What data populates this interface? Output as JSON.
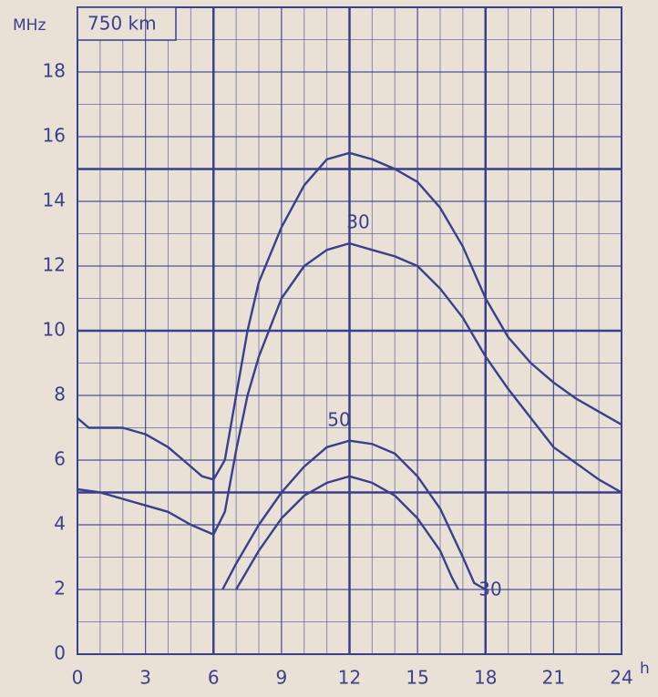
{
  "chart_data": {
    "type": "line",
    "title": "750 km",
    "y_label": "MHz",
    "x_label": "h",
    "xlim": [
      0,
      24
    ],
    "xticks": [
      0,
      3,
      6,
      9,
      12,
      15,
      18,
      21,
      24
    ],
    "ylim": [
      0,
      20
    ],
    "yticks": [
      0,
      2,
      4,
      6,
      8,
      10,
      12,
      14,
      16,
      18
    ],
    "grid": true,
    "reference_lines": {
      "x": [
        6,
        12,
        18
      ],
      "y": [
        5,
        10,
        15
      ]
    },
    "annotations": [
      "30",
      "50",
      "30"
    ],
    "series": [
      {
        "color": "#3b3f8c",
        "x": [
          0,
          0.5,
          1,
          2,
          3,
          4,
          5,
          5.5,
          6,
          6.5,
          7,
          7.5,
          8,
          9,
          10,
          11,
          12,
          13,
          14,
          15,
          16,
          17,
          18,
          19,
          20,
          21,
          22,
          23,
          24
        ],
        "values": [
          7.3,
          7.0,
          7.0,
          7.0,
          6.8,
          6.4,
          5.8,
          5.5,
          5.4,
          6.0,
          8.0,
          10.0,
          11.5,
          13.2,
          14.5,
          15.3,
          15.5,
          15.3,
          15.0,
          14.6,
          13.8,
          12.6,
          11.0,
          9.8,
          9.0,
          8.4,
          7.9,
          7.5,
          7.1
        ]
      },
      {
        "color": "#3b3f8c",
        "x": [
          0,
          1,
          2,
          3,
          4,
          5,
          6,
          6.5,
          7,
          7.5,
          8,
          9,
          10,
          11,
          12,
          13,
          14,
          15,
          16,
          17,
          18,
          19,
          20,
          21,
          22,
          23,
          24
        ],
        "values": [
          5.1,
          5.0,
          4.8,
          4.6,
          4.4,
          4.0,
          3.7,
          4.4,
          6.3,
          8.0,
          9.2,
          11.0,
          12.0,
          12.5,
          12.7,
          12.5,
          12.3,
          12.0,
          11.3,
          10.4,
          9.2,
          8.2,
          7.3,
          6.4,
          5.9,
          5.4,
          5.0
        ]
      },
      {
        "color": "#3b3f8c",
        "x": [
          6.4,
          7,
          8,
          9,
          10,
          11,
          12,
          13,
          14,
          15,
          16,
          17,
          17.5,
          18
        ],
        "values": [
          2.0,
          2.8,
          4.0,
          5.0,
          5.8,
          6.4,
          6.6,
          6.5,
          6.2,
          5.5,
          4.5,
          3.0,
          2.2,
          2.0
        ]
      },
      {
        "color": "#3b3f8c",
        "x": [
          7,
          8,
          9,
          10,
          11,
          12,
          13,
          14,
          15,
          16,
          16.5,
          16.8
        ],
        "values": [
          2.0,
          3.2,
          4.2,
          4.9,
          5.3,
          5.5,
          5.3,
          4.9,
          4.2,
          3.2,
          2.4,
          2.0
        ]
      }
    ]
  }
}
